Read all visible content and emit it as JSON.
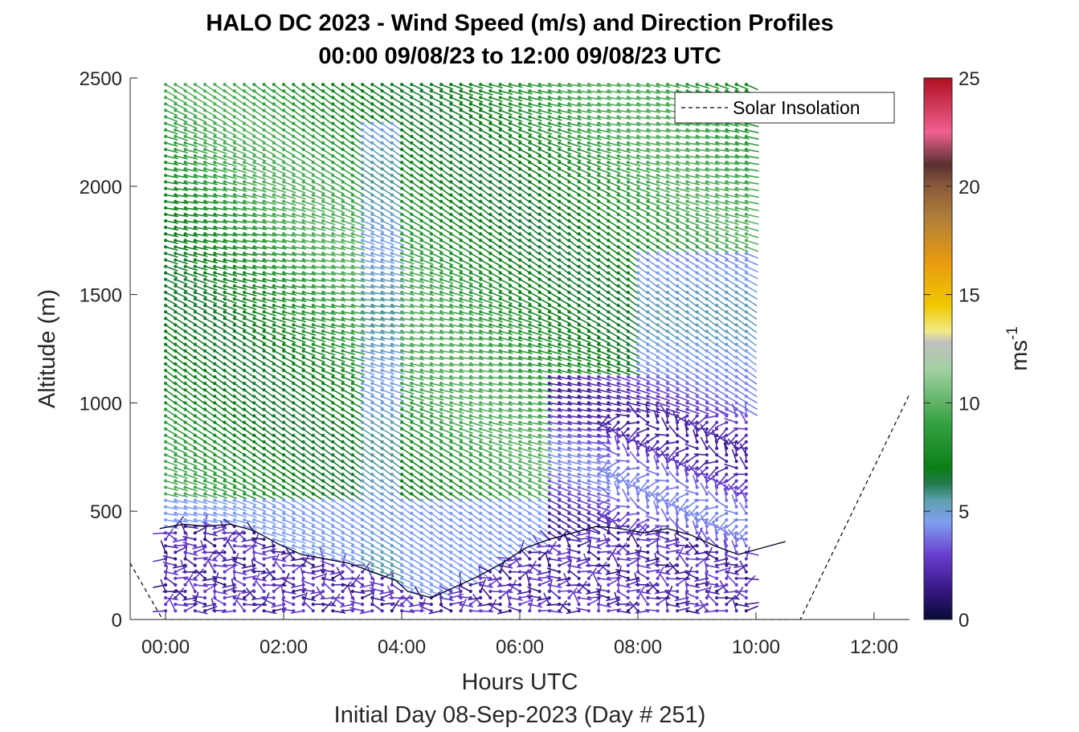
{
  "chart_data": {
    "type": "vector-field",
    "title_line1": "HALO DC 2023 - Wind Speed (m/s) and Direction Profiles",
    "title_line2": "00:00 09/08/23 to 12:00 09/08/23  UTC",
    "xlabel": "Hours UTC",
    "xlabel_sub": "Initial Day 08-Sep-2023 (Day # 251)",
    "ylabel": "Altitude (m)",
    "xlim_hours": [
      -0.6,
      12.6
    ],
    "ylim": [
      0,
      2500
    ],
    "x_ticks": [
      {
        "v": 0,
        "label": "00:00"
      },
      {
        "v": 2,
        "label": "02:00"
      },
      {
        "v": 4,
        "label": "04:00"
      },
      {
        "v": 6,
        "label": "06:00"
      },
      {
        "v": 8,
        "label": "08:00"
      },
      {
        "v": 10,
        "label": "10:00"
      },
      {
        "v": 12,
        "label": "12:00"
      }
    ],
    "y_ticks": [
      {
        "v": 0,
        "label": "0"
      },
      {
        "v": 500,
        "label": "500"
      },
      {
        "v": 1000,
        "label": "1000"
      },
      {
        "v": 1500,
        "label": "1500"
      },
      {
        "v": 2000,
        "label": "2000"
      },
      {
        "v": 2500,
        "label": "2500"
      }
    ],
    "colorbar": {
      "label": "ms",
      "label_exponent": "-1",
      "range": [
        0,
        25
      ],
      "ticks": [
        {
          "v": 0,
          "label": "0"
        },
        {
          "v": 5,
          "label": "5"
        },
        {
          "v": 10,
          "label": "10"
        },
        {
          "v": 15,
          "label": "15"
        },
        {
          "v": 20,
          "label": "20"
        },
        {
          "v": 25,
          "label": "25"
        }
      ],
      "stops": [
        {
          "v": 0,
          "color": "#0a0a35"
        },
        {
          "v": 1.5,
          "color": "#3a1a8a"
        },
        {
          "v": 3,
          "color": "#6a3fd0"
        },
        {
          "v": 4.5,
          "color": "#7f9ff2"
        },
        {
          "v": 5.5,
          "color": "#5e9fae"
        },
        {
          "v": 6.3,
          "color": "#1f7a4a"
        },
        {
          "v": 7,
          "color": "#0b7f16"
        },
        {
          "v": 9,
          "color": "#32a040"
        },
        {
          "v": 11.5,
          "color": "#a0d0a0"
        },
        {
          "v": 12.8,
          "color": "#c0c0c0"
        },
        {
          "v": 13.3,
          "color": "#f2ea88"
        },
        {
          "v": 14.5,
          "color": "#f0c800"
        },
        {
          "v": 16.5,
          "color": "#e89a10"
        },
        {
          "v": 18.5,
          "color": "#b08038"
        },
        {
          "v": 20,
          "color": "#8a5a3a"
        },
        {
          "v": 21,
          "color": "#5a3030"
        },
        {
          "v": 22.5,
          "color": "#f06090"
        },
        {
          "v": 25,
          "color": "#b01020"
        }
      ]
    },
    "legend": {
      "label": "Solar Insolation",
      "style": "dashed black",
      "placement": "top-right"
    },
    "solar_insolation": {
      "x_hours": [
        -0.6,
        -0.05,
        10.75,
        12.6
      ],
      "y_m": [
        260,
        0,
        0,
        1040
      ]
    },
    "boundary_layer_line": {
      "x_hours": [
        -0.1,
        0.3,
        0.7,
        1.1,
        1.5,
        1.9,
        2.3,
        2.7,
        3.1,
        3.5,
        3.9,
        4.1,
        4.5,
        4.9,
        5.3,
        5.7,
        6.1,
        6.5,
        6.9,
        7.3,
        7.7,
        8.1,
        8.5,
        8.9,
        9.3,
        9.7,
        10.1,
        10.5
      ],
      "y_m": [
        420,
        440,
        430,
        440,
        410,
        350,
        300,
        280,
        260,
        220,
        180,
        130,
        100,
        150,
        200,
        260,
        330,
        370,
        400,
        430,
        420,
        400,
        420,
        390,
        340,
        300,
        330,
        360
      ]
    },
    "profiles": {
      "time_start_hours": 0.0,
      "time_step_hours": 0.1667,
      "n_profiles": 60,
      "alt_start_m": 40,
      "alt_step_m": 30,
      "alt_top_m": 2480
    }
  }
}
